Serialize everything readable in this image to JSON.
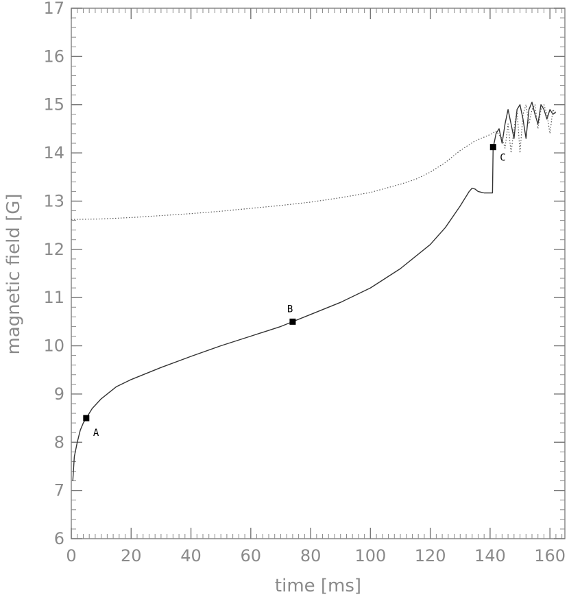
{
  "chart_data": {
    "type": "line",
    "title": "",
    "xlabel": "time [ms]",
    "ylabel": "magnetic field [G]",
    "xlim": [
      0,
      165
    ],
    "ylim": [
      6,
      17
    ],
    "xticks": [
      0,
      20,
      40,
      60,
      80,
      100,
      120,
      140,
      160
    ],
    "yticks": [
      6,
      7,
      8,
      9,
      10,
      11,
      12,
      13,
      14,
      15,
      16,
      17
    ],
    "grid": false,
    "series": [
      {
        "style": "solid",
        "color": "#333333",
        "x": [
          0.5,
          1,
          2,
          3,
          4,
          5,
          7,
          10,
          15,
          20,
          30,
          40,
          50,
          60,
          70,
          74,
          80,
          90,
          100,
          110,
          120,
          125,
          130,
          133,
          134,
          135,
          136,
          138,
          140,
          140.8,
          141,
          142,
          143,
          144,
          145,
          146,
          147,
          148,
          149,
          150,
          151,
          152,
          153,
          154,
          155,
          156,
          157,
          158,
          159,
          160,
          161,
          162
        ],
        "y": [
          7.2,
          7.7,
          8.0,
          8.25,
          8.4,
          8.5,
          8.7,
          8.9,
          9.15,
          9.3,
          9.55,
          9.78,
          10.0,
          10.2,
          10.4,
          10.5,
          10.65,
          10.9,
          11.2,
          11.6,
          12.1,
          12.45,
          12.9,
          13.2,
          13.27,
          13.25,
          13.2,
          13.17,
          13.17,
          13.17,
          14.1,
          14.4,
          14.5,
          14.2,
          14.6,
          14.9,
          14.6,
          14.3,
          14.9,
          15.0,
          14.7,
          14.3,
          14.9,
          15.05,
          14.8,
          14.6,
          15.0,
          14.9,
          14.7,
          14.9,
          14.8,
          14.85
        ]
      },
      {
        "style": "dotted",
        "color": "#555555",
        "x": [
          0,
          10,
          20,
          30,
          40,
          50,
          60,
          70,
          80,
          90,
          100,
          110,
          115,
          120,
          125,
          130,
          135,
          140,
          142,
          144,
          145,
          146,
          147,
          148,
          149,
          150,
          151,
          152,
          153,
          154,
          155,
          156,
          157,
          158,
          159,
          160,
          161,
          162
        ],
        "y": [
          12.62,
          12.63,
          12.66,
          12.7,
          12.74,
          12.79,
          12.85,
          12.91,
          12.98,
          13.07,
          13.18,
          13.35,
          13.45,
          13.6,
          13.8,
          14.05,
          14.25,
          14.38,
          14.45,
          14.3,
          14.1,
          14.6,
          14.0,
          14.5,
          14.9,
          14.0,
          14.8,
          15.0,
          14.6,
          14.9,
          15.0,
          14.5,
          14.9,
          15.0,
          14.8,
          14.4,
          14.9,
          14.8
        ]
      }
    ],
    "markers": [
      {
        "label": "A",
        "x": 5,
        "y": 8.5
      },
      {
        "label": "B",
        "x": 74,
        "y": 10.5
      },
      {
        "label": "C",
        "x": 141,
        "y": 14.12
      }
    ]
  }
}
